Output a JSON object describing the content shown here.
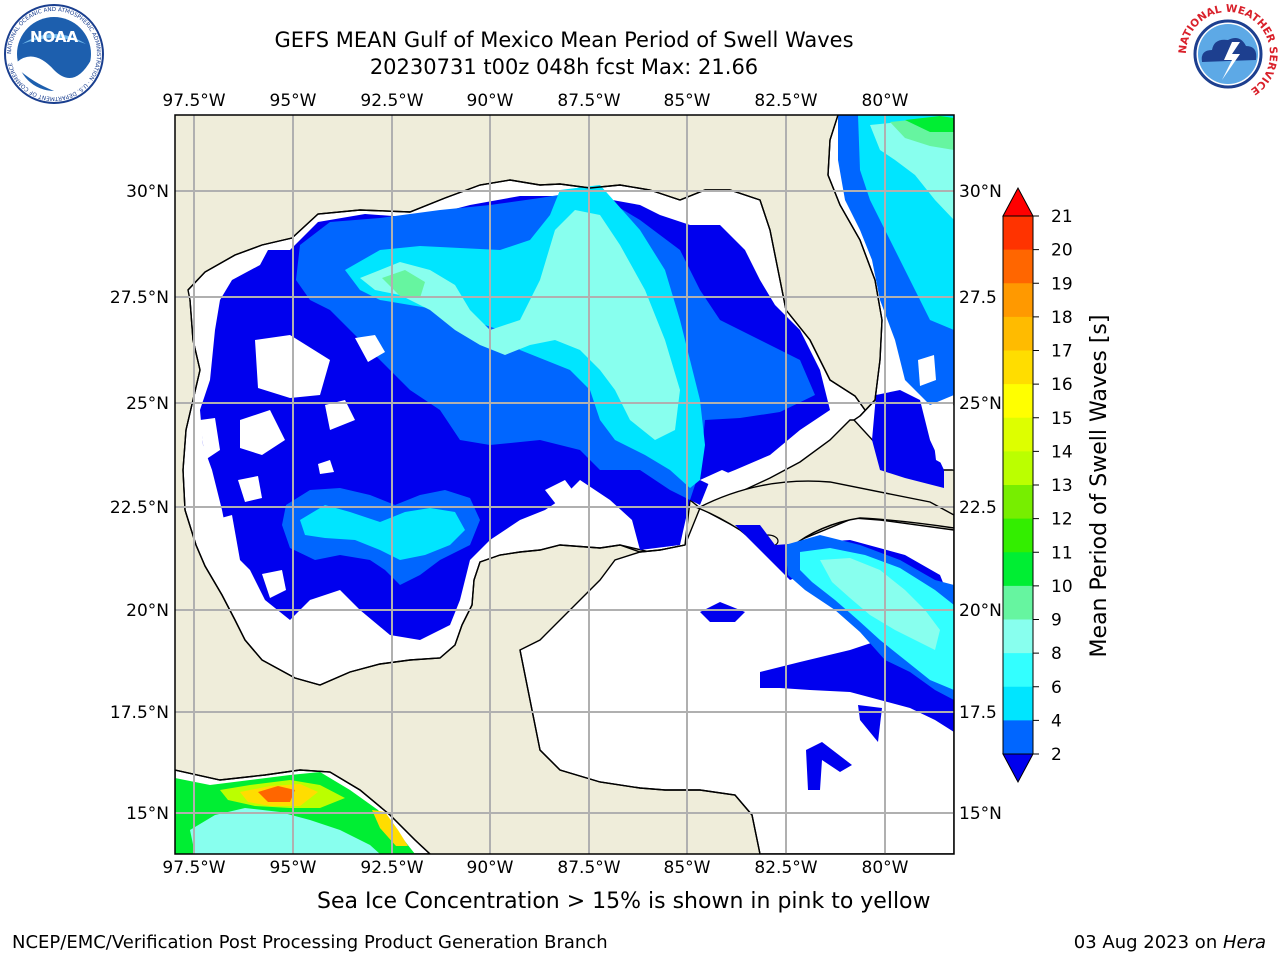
{
  "header": {
    "title": "GEFS MEAN Gulf of Mexico Mean Period of Swell Waves",
    "subtitle": "20230731 t00z 048h fcst   Max: 21.66"
  },
  "logos": {
    "left_icon": "noaa-logo",
    "left_text": "NOAA",
    "left_ring_text": "NATIONAL OCEANIC AND ATMOSPHERIC ADMINISTRATION · U.S. DEPARTMENT OF COMMERCE",
    "right_icon": "national-weather-service-logo",
    "right_ring_text": "NATIONAL WEATHER SERVICE"
  },
  "map": {
    "lon_labels": [
      "97.5°W",
      "95°W",
      "92.5°W",
      "90°W",
      "87.5°W",
      "85°W",
      "82.5°W",
      "80°W"
    ],
    "lat_labels_left": [
      "30°N",
      "27.5°N",
      "25°N",
      "22.5°N",
      "20°N",
      "17.5°N",
      "15°N"
    ],
    "lat_labels_right": [
      "30°N",
      "27.5",
      "25°N",
      "22.5",
      "20°N",
      "17.5",
      "15°N"
    ],
    "land_color": "#efedda",
    "grid_color": "#b0b0b0"
  },
  "colorbar": {
    "label": "Mean Period of Swell Waves [s]",
    "ticks": [
      "21",
      "20",
      "19",
      "18",
      "17",
      "16",
      "15",
      "14",
      "13",
      "12",
      "11",
      "10",
      "9",
      "8",
      "6",
      "4",
      "2"
    ],
    "colors": [
      "#ff0000",
      "#ff3300",
      "#ff6600",
      "#ff9900",
      "#ffbb00",
      "#ffdd00",
      "#ffff00",
      "#ddff00",
      "#bbff00",
      "#77ee00",
      "#33ee00",
      "#00ee33",
      "#66f5a0",
      "#88ffee",
      "#33ffff",
      "#00e5ff",
      "#0066ff",
      "#0000ee"
    ]
  },
  "footer": {
    "note": "Sea Ice Concentration > 15% is shown in pink to yellow",
    "credit_left": "NCEP/EMC/Verification Post Processing Product Generation Branch",
    "credit_right_prefix": "03 Aug 2023 on ",
    "credit_right_host": "Hera"
  }
}
